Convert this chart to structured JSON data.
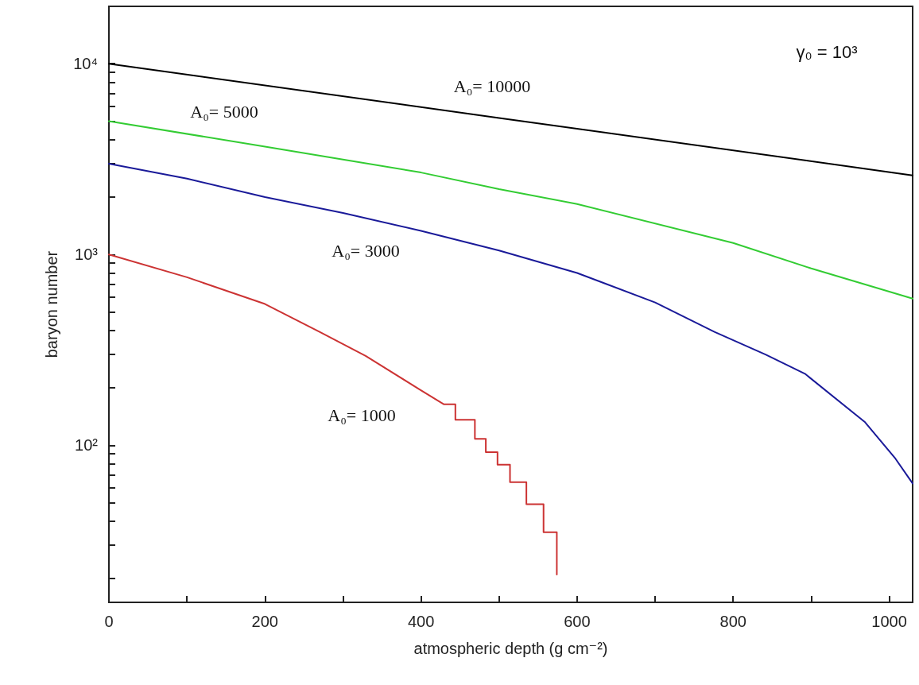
{
  "chart_data": {
    "type": "line",
    "xlabel": "atmospheric depth (g cm⁻²)",
    "ylabel": "baryon number",
    "log": "y",
    "grid": false,
    "marker": "none",
    "line_style": "solid",
    "xlim": [
      0,
      1030
    ],
    "xticks": [
      0,
      {
        "value": 100,
        "label": null
      },
      200,
      {
        "value": 300,
        "label": null
      },
      400,
      {
        "value": 500,
        "label": null
      },
      600,
      {
        "value": 700,
        "label": null
      },
      800,
      {
        "value": 900,
        "label": null
      },
      1000
    ],
    "ylim": [
      15,
      20000
    ],
    "yticks": [
      {
        "value": 20,
        "label": null
      },
      {
        "value": 30,
        "label": null
      },
      {
        "value": 40,
        "label": null
      },
      {
        "value": 50,
        "label": null
      },
      {
        "value": 60,
        "label": null
      },
      {
        "value": 70,
        "label": null
      },
      {
        "value": 80,
        "label": null
      },
      {
        "value": 90,
        "label": null
      },
      {
        "value": 100,
        "label": "10²"
      },
      {
        "value": 200,
        "label": null
      },
      {
        "value": 300,
        "label": null
      },
      {
        "value": 400,
        "label": null
      },
      {
        "value": 500,
        "label": null
      },
      {
        "value": 600,
        "label": null
      },
      {
        "value": 700,
        "label": null
      },
      {
        "value": 800,
        "label": null
      },
      {
        "value": 900,
        "label": null
      },
      {
        "value": 1000,
        "label": "10³"
      },
      {
        "value": 2000,
        "label": null
      },
      {
        "value": 3000,
        "label": null
      },
      {
        "value": 4000,
        "label": null
      },
      {
        "value": 5000,
        "label": null
      },
      {
        "value": 6000,
        "label": null
      },
      {
        "value": 7000,
        "label": null
      },
      {
        "value": 8000,
        "label": null
      },
      {
        "value": 9000,
        "label": null
      },
      {
        "value": 10000,
        "label": "10⁴"
      },
      {
        "value": 20000,
        "label": null
      }
    ],
    "series": [
      {
        "color": "#000000",
        "x": [
          0,
          500,
          1030
        ],
        "values": [
          10000,
          5200,
          2600
        ]
      },
      {
        "color": "#33cc33",
        "x": [
          0,
          200,
          300,
          400,
          500,
          600,
          800,
          900,
          1030
        ],
        "values": [
          5000,
          3680,
          3150,
          2690,
          2200,
          1840,
          1150,
          845,
          587
        ]
      },
      {
        "color": "#1a1a99",
        "x": [
          0,
          100,
          200,
          300,
          400,
          500,
          600,
          700,
          776,
          842,
          892,
          969,
          1008,
          1030
        ],
        "values": [
          2990,
          2500,
          2000,
          1650,
          1330,
          1050,
          800,
          560,
          393,
          298,
          237,
          132,
          85,
          63
        ]
      },
      {
        "color": "#cc3333",
        "x": [
          0,
          100,
          200,
          270,
          329,
          399,
          429,
          444,
          444,
          469,
          469,
          483,
          483,
          498,
          498,
          514,
          514,
          535,
          535,
          557,
          557,
          574,
          574
        ],
        "values": [
          1000,
          760,
          550,
          393,
          294,
          195,
          164,
          164,
          136,
          136,
          108,
          108,
          92,
          92,
          79,
          79,
          64,
          64,
          49,
          49,
          35,
          35,
          21
        ]
      }
    ],
    "annotations": [
      "A₀= 10000",
      "A₀= 5000",
      "A₀= 3000",
      "A₀= 1000",
      "γ₀ = 10³"
    ]
  }
}
